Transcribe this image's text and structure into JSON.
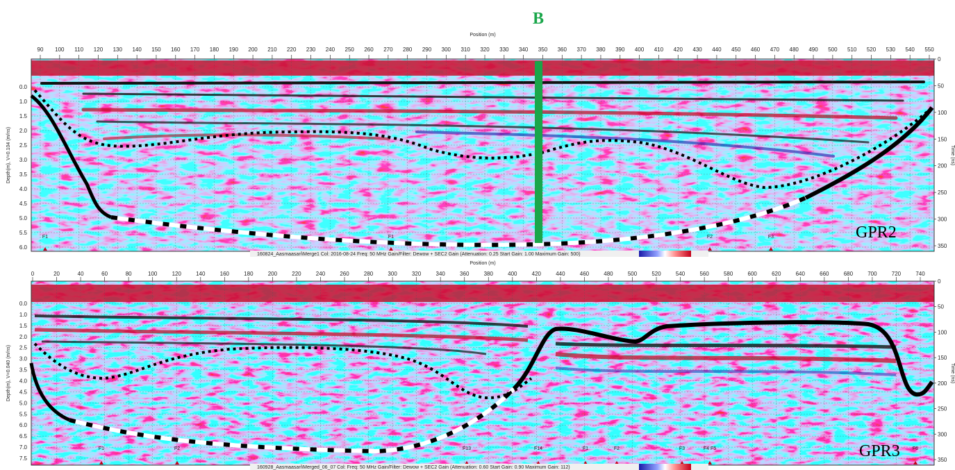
{
  "figure_label": "B",
  "panels": [
    {
      "position_title": "Position (m)",
      "position_ticks": [
        "90",
        "100",
        "110",
        "120",
        "130",
        "140",
        "150",
        "160",
        "170",
        "180",
        "190",
        "200",
        "210",
        "220",
        "230",
        "240",
        "250",
        "260",
        "270",
        "280",
        "290",
        "300",
        "310",
        "320",
        "330",
        "340",
        "350",
        "360",
        "370",
        "380",
        "390",
        "400",
        "410",
        "420",
        "430",
        "440",
        "450",
        "460",
        "470",
        "480",
        "490",
        "500",
        "510",
        "520",
        "530",
        "540",
        "550"
      ],
      "depth_label": "Depth(m), V=0.104 (m/ns)",
      "depth_ticks": [
        "0.0",
        "1.0",
        "1.5",
        "2.0",
        "2.5",
        "3.0",
        "3.5",
        "4.0",
        "4.5",
        "5.0",
        "5.5",
        "6.0"
      ],
      "time_ticks": [
        "0",
        "50",
        "100",
        "150",
        "200",
        "250",
        "300",
        "350"
      ],
      "time_label": "Time (ns)",
      "profile_name": "GPR2",
      "caption": "160824_Aasmaasari\\Merge1  Col: 2016-08-24  Freq: 50 MHz  Gain/Filter: Dewow + SEC2 Gain (Attenuation: 0.25  Start Gain: 1.00  Maximum Gain: 500)",
      "markers": [
        "F1",
        "F1",
        "F2",
        "F3"
      ]
    },
    {
      "position_title": "Position (m)",
      "position_ticks": [
        "0",
        "20",
        "40",
        "60",
        "80",
        "100",
        "120",
        "140",
        "160",
        "180",
        "200",
        "220",
        "240",
        "260",
        "280",
        "300",
        "320",
        "340",
        "360",
        "380",
        "400",
        "420",
        "440",
        "460",
        "480",
        "500",
        "520",
        "540",
        "560",
        "580",
        "600",
        "620",
        "640",
        "660",
        "680",
        "700",
        "720",
        "740"
      ],
      "depth_label": "Depth(m), V=0.040 (m/ns)",
      "depth_ticks": [
        "0.0",
        "1.0",
        "1.5",
        "2.0",
        "2.5",
        "3.0",
        "3.5",
        "4.0",
        "4.5",
        "5.0",
        "5.5",
        "6.0",
        "6.5",
        "7.0",
        "7.5"
      ],
      "time_ticks": [
        "0",
        "50",
        "100",
        "150",
        "200",
        "250",
        "300",
        "350"
      ],
      "time_label": "Time (ns)",
      "profile_name": "GPR3",
      "caption": "160928_Aasmaasari\\Merged_06_07  Col:  Freq: 50 MHz  Gain/Filter: Dewow + SEC2 Gain (Attenuation: 0.60  Start Gain: 0.90  Maximum Gain: 112)",
      "markers": [
        "F1",
        "F2",
        "F13",
        "F14",
        "F1",
        "F2",
        "F3",
        "F4 F5",
        "F6"
      ]
    }
  ]
}
